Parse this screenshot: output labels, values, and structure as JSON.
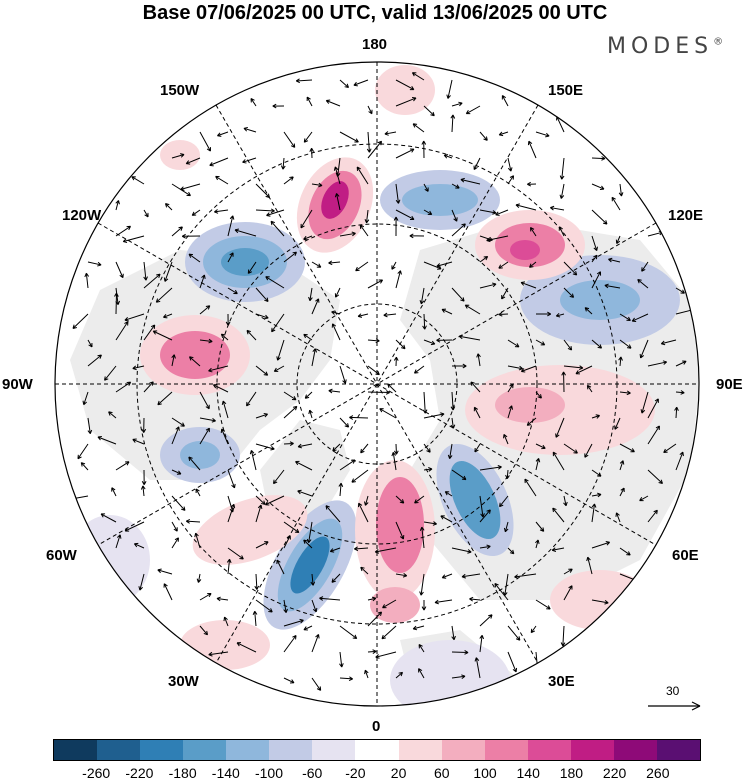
{
  "title": "Base 07/06/2025 00 UTC, valid 13/06/2025 00 UTC",
  "brand": "MODES",
  "brand_mark": "®",
  "longitude_labels": {
    "top": "180",
    "bottom": "0",
    "left": "90W",
    "right": "90E",
    "nw_150": "150W",
    "ne_150": "150E",
    "nw_120": "120W",
    "ne_120": "120E",
    "sw_60": "60W",
    "se_60": "60E",
    "sw_30": "30W",
    "se_30": "30E"
  },
  "vector_scale": {
    "label": "30"
  },
  "colorbar": {
    "colors": [
      "#0f3a5e",
      "#1f5f8f",
      "#2f7fb5",
      "#5a9dc8",
      "#8fb7dc",
      "#c2cbe6",
      "#e6e3f1",
      "#ffffff",
      "#f9d9dc",
      "#f3aebf",
      "#ec7fa6",
      "#dc4c97",
      "#c01d84",
      "#8e0a78",
      "#5a0f72"
    ],
    "ticks": [
      "-260",
      "-220",
      "-180",
      "-140",
      "-100",
      "-60",
      "-20",
      "20",
      "60",
      "100",
      "140",
      "180",
      "220",
      "260"
    ]
  }
}
